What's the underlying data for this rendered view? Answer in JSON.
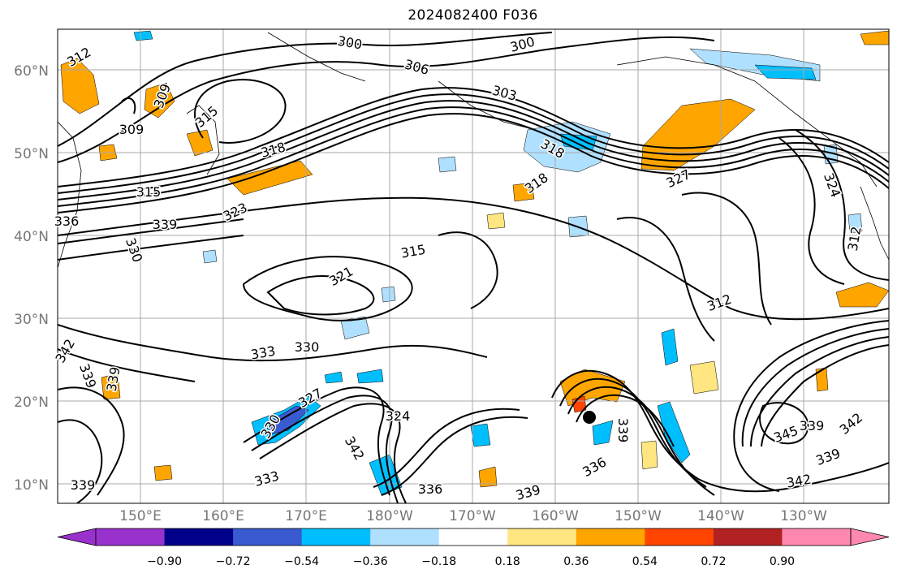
{
  "title": "2024082400 F036",
  "lat_labels": [
    "60°N",
    "50°N",
    "40°N",
    "30°N",
    "20°N",
    "10°N"
  ],
  "lon_labels": [
    "150°E",
    "160°E",
    "170°E",
    "180°W",
    "170°W",
    "160°W",
    "150°W",
    "140°W",
    "130°W"
  ],
  "colorbar": {
    "ticks": [
      "−0.90",
      "−0.72",
      "−0.54",
      "−0.36",
      "−0.18",
      "0.18",
      "0.36",
      "0.54",
      "0.72",
      "0.90"
    ],
    "colors": [
      "#9932cc",
      "#00008b",
      "#3a5bd0",
      "#00bfff",
      "#b0e0ff",
      "#ffffff",
      "#ffe680",
      "#ffa500",
      "#ff4500",
      "#b22222",
      "#ff88b0"
    ]
  },
  "contour_labels": [
    "312",
    "300",
    "300",
    "306",
    "303",
    "309",
    "309",
    "315",
    "318",
    "318",
    "318",
    "327",
    "315",
    "323",
    "339",
    "330",
    "336",
    "315",
    "321",
    "324",
    "312",
    "312",
    "333",
    "330",
    "342",
    "339",
    "339",
    "327",
    "330",
    "324",
    "342",
    "336",
    "339",
    "336",
    "345",
    "339",
    "342",
    "339",
    "342",
    "339",
    "333",
    "339"
  ]
}
